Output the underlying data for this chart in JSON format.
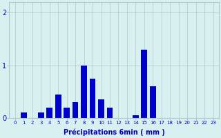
{
  "values": [
    0,
    0.1,
    0,
    0.1,
    0.2,
    0.45,
    0.2,
    0.3,
    1.0,
    0.75,
    0.35,
    0.2,
    0,
    0,
    0.05,
    1.3,
    0.6,
    0,
    0,
    0,
    0,
    0,
    0,
    0
  ],
  "xlabel": "Précipitations 6min ( mm )",
  "ylim": [
    0,
    2.2
  ],
  "yticks": [
    0,
    1,
    2
  ],
  "bar_color": "#0000cc",
  "background_color": "#d8f0f0",
  "grid_color": "#b0c8c8",
  "text_color": "#0000cc",
  "n_bars": 24
}
